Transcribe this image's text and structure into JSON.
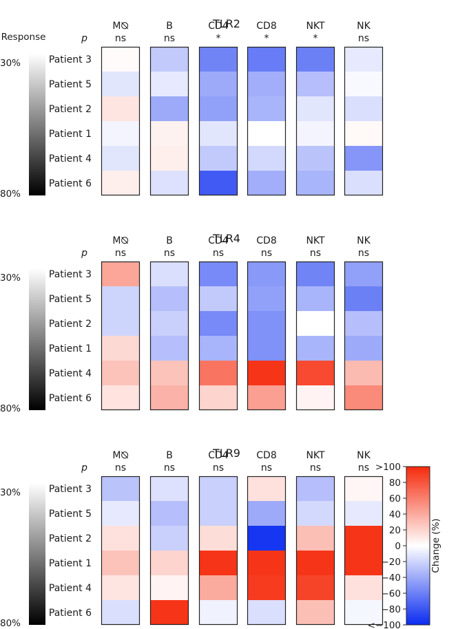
{
  "chart_data": {
    "type": "heatmap",
    "response_axis": {
      "label": "Response",
      "top": "30%",
      "bottom": "80%"
    },
    "p_label": "p",
    "colorbar": {
      "label": "Change (%)",
      "ticks": [
        ">100",
        "80",
        "60",
        "40",
        "20",
        "0",
        "−20",
        "−40",
        "−60",
        "−80",
        "<−100"
      ],
      "range": [
        -100,
        100
      ],
      "colors": {
        "negative": "#0a2bf0",
        "zero": "#ffffff",
        "positive": "#f52a0c"
      }
    },
    "columns": [
      "M⦰",
      "B",
      "CD4",
      "CD8",
      "NKT",
      "NK"
    ],
    "rows": [
      "Patient 3",
      "Patient 5",
      "Patient 2",
      "Patient 1",
      "Patient 4",
      "Patient 6"
    ],
    "panels": [
      {
        "title": "TLR2",
        "significance": [
          "ns",
          "ns",
          "*",
          "*",
          "*",
          "ns"
        ],
        "values": [
          [
            2,
            -25,
            -58,
            -62,
            -60,
            -10
          ],
          [
            -12,
            -10,
            -40,
            -38,
            -30,
            -3
          ],
          [
            12,
            -40,
            -45,
            -35,
            -12,
            -15
          ],
          [
            -5,
            6,
            -12,
            0,
            -5,
            3
          ],
          [
            -12,
            8,
            -25,
            -18,
            -28,
            -50
          ],
          [
            8,
            -14,
            -78,
            -38,
            -35,
            -15
          ]
        ]
      },
      {
        "title": "TLR4",
        "significance": [
          "ns",
          "ns",
          "ns",
          "ns",
          "ns",
          "ns"
        ],
        "values": [
          [
            42,
            -15,
            -55,
            -48,
            -58,
            -45
          ],
          [
            -20,
            -30,
            -25,
            -45,
            -35,
            -60
          ],
          [
            -20,
            -22,
            -55,
            -52,
            0,
            -30
          ],
          [
            18,
            -30,
            -35,
            -52,
            -35,
            -40
          ],
          [
            28,
            28,
            65,
            95,
            85,
            32
          ],
          [
            13,
            36,
            20,
            45,
            5,
            55
          ]
        ]
      },
      {
        "title": "TLR9",
        "significance": [
          "ns",
          "ns",
          "ns",
          "ns",
          "ns",
          "ns"
        ],
        "values": [
          [
            -28,
            -14,
            -22,
            14,
            -30,
            4
          ],
          [
            -10,
            -30,
            -22,
            -40,
            -18,
            -10
          ],
          [
            14,
            -22,
            16,
            -95,
            30,
            95
          ],
          [
            28,
            20,
            95,
            95,
            95,
            95
          ],
          [
            12,
            5,
            40,
            92,
            88,
            14
          ],
          [
            -15,
            95,
            -6,
            -15,
            30,
            -4
          ]
        ]
      }
    ]
  }
}
